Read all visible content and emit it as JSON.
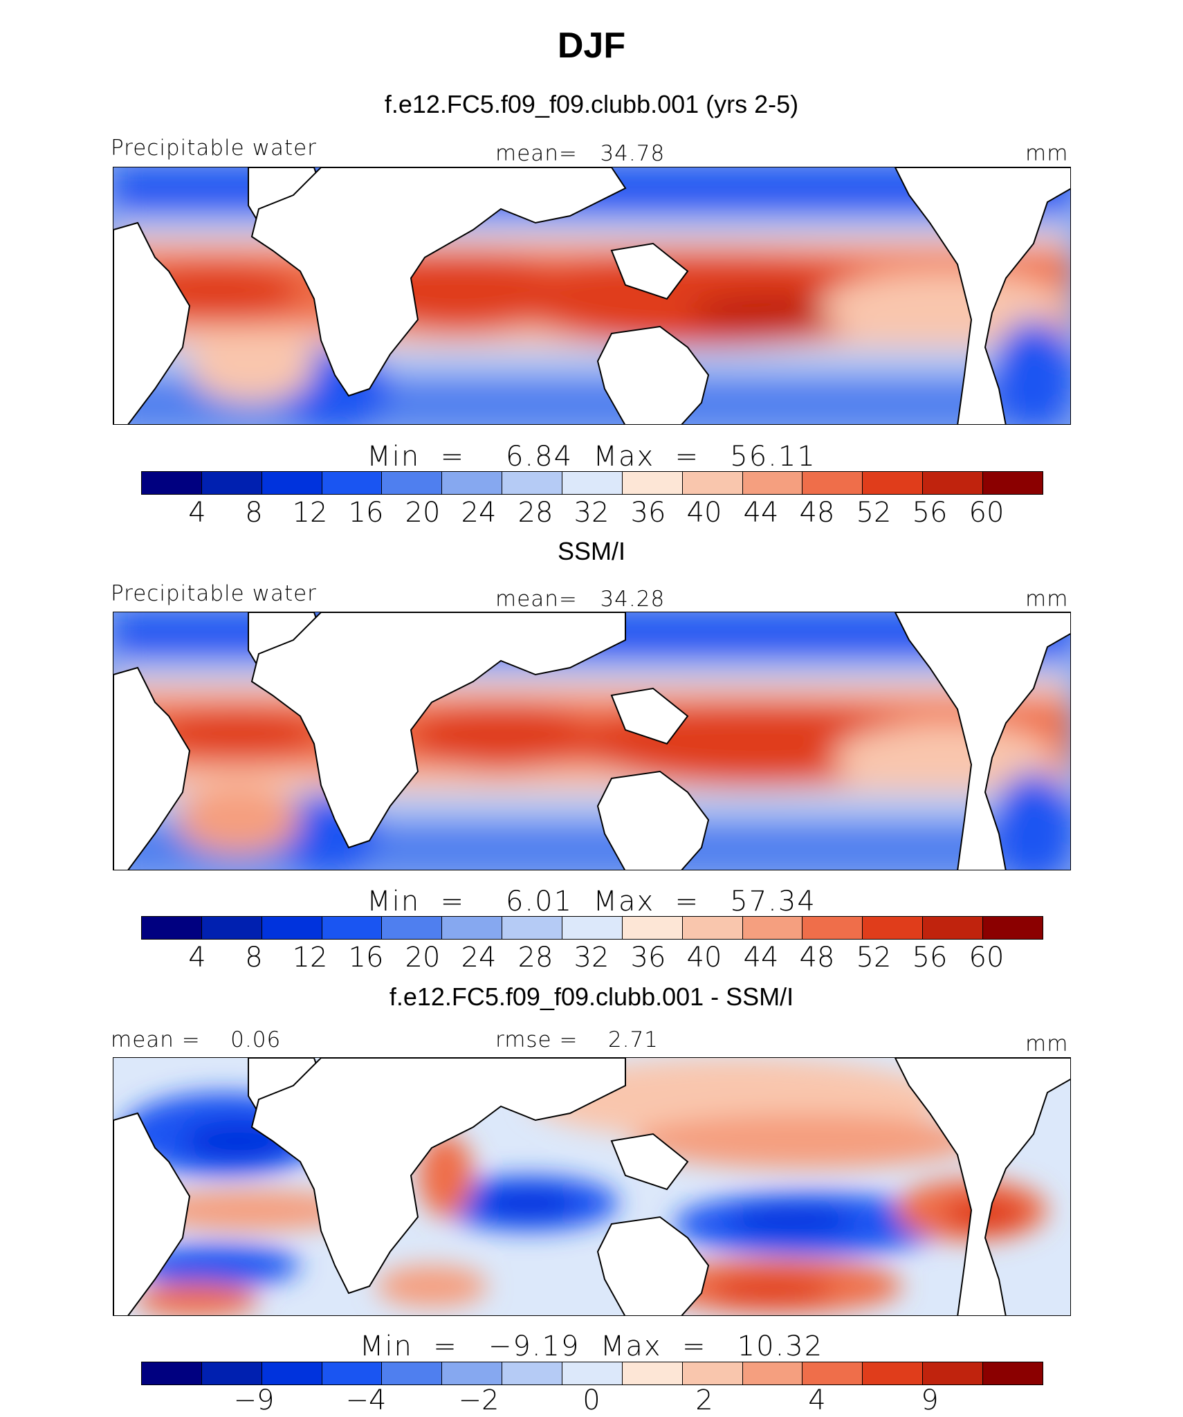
{
  "figure": {
    "title": "DJF",
    "colors": [
      "#000080",
      "#0020b0",
      "#0033dd",
      "#1a55f2",
      "#4f7fef",
      "#86a8f0",
      "#b5cbf5",
      "#dce8fa",
      "#fde6d6",
      "#f9c6ad",
      "#f59f7f",
      "#ef6e4a",
      "#e03d1b",
      "#c0230d",
      "#8b0000"
    ]
  },
  "chart_data": [
    {
      "type": "heatmap",
      "subtitle": "f.e12.FC5.f09_f09.clubb.001 (yrs 2-5)",
      "left_label": "Precipitable water",
      "center_label": "mean=   34.78",
      "right_label": "mm",
      "mean": 34.78,
      "min": 6.84,
      "max": 56.11,
      "min_max_text": "Min  =    6.84  Max  =   56.11",
      "colorbar_ticks": [
        "4",
        "8",
        "12",
        "16",
        "20",
        "24",
        "28",
        "32",
        "36",
        "40",
        "44",
        "48",
        "52",
        "56",
        "60"
      ],
      "colorbar_levels": [
        4,
        8,
        12,
        16,
        20,
        24,
        28,
        32,
        36,
        40,
        44,
        48,
        52,
        56,
        60
      ],
      "units": "mm"
    },
    {
      "type": "heatmap",
      "subtitle": "SSM/I",
      "left_label": "Precipitable water",
      "center_label": "mean=   34.28",
      "right_label": "mm",
      "mean": 34.28,
      "min": 6.01,
      "max": 57.34,
      "min_max_text": "Min  =    6.01  Max  =   57.34",
      "colorbar_ticks": [
        "4",
        "8",
        "12",
        "16",
        "20",
        "24",
        "28",
        "32",
        "36",
        "40",
        "44",
        "48",
        "52",
        "56",
        "60"
      ],
      "colorbar_levels": [
        4,
        8,
        12,
        16,
        20,
        24,
        28,
        32,
        36,
        40,
        44,
        48,
        52,
        56,
        60
      ],
      "units": "mm"
    },
    {
      "type": "heatmap",
      "subtitle": "f.e12.FC5.f09_f09.clubb.001 - SSM/I",
      "left_label": "mean =    0.06",
      "center_label": "rmse =    2.71",
      "right_label": "mm",
      "mean": 0.06,
      "rmse": 2.71,
      "min": -9.19,
      "max": 10.32,
      "min_max_text": "Min  =   −9.19  Max  =   10.32",
      "colorbar_ticks": [
        "−9",
        "−4",
        "−2",
        "0",
        "2",
        "4",
        "9"
      ],
      "colorbar_tick_boundaries": [
        1,
        3,
        5,
        7,
        9,
        11,
        13
      ],
      "units": "mm"
    }
  ]
}
